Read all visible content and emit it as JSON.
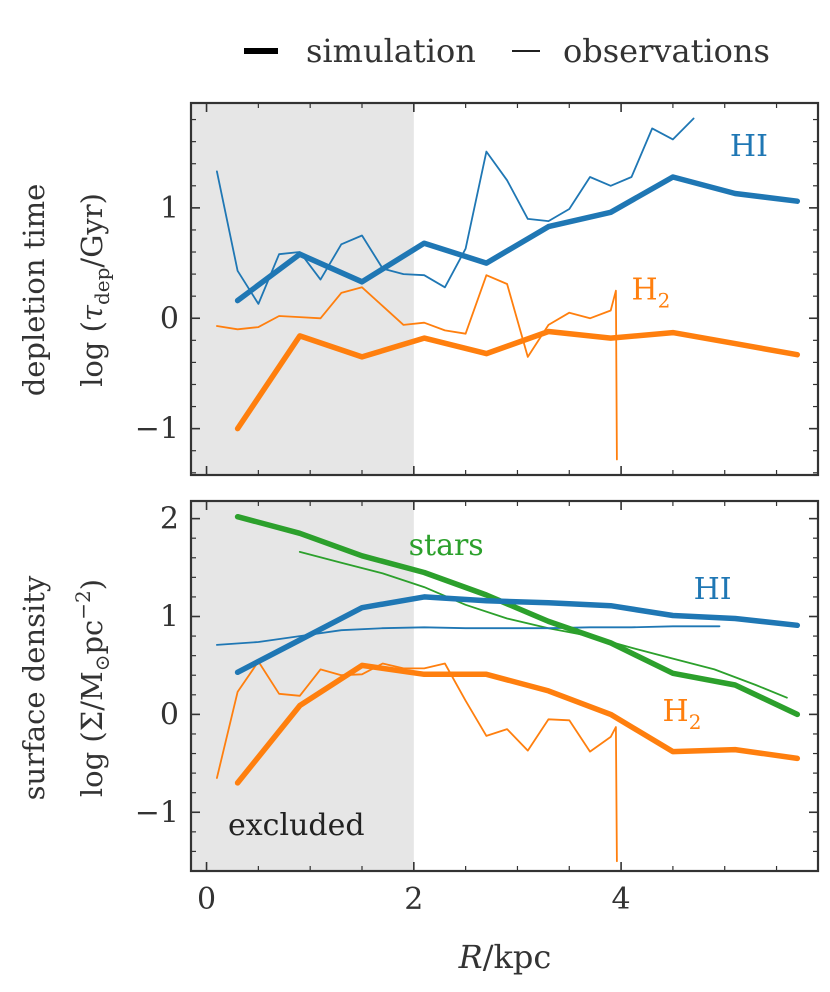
{
  "legend": {
    "simulation": "simulation",
    "observations": "observations"
  },
  "colors": {
    "HI": "#1f77b4",
    "H2": "#ff7f0e",
    "stars": "#2ca02c",
    "excluded": "#e6e6e6",
    "frame": "#333333"
  },
  "chart_data": [
    {
      "type": "line",
      "panel": "top",
      "ylabel_line1": "depletion time",
      "ylabel_line2": "log (τ_dep/Gyr)",
      "xlim": [
        -0.15,
        5.9
      ],
      "ylim": [
        -1.42,
        1.95
      ],
      "yticks": [
        -1,
        0,
        1
      ],
      "ytick_labels": [
        "−1",
        "0",
        "1"
      ],
      "excluded_region": [
        -0.15,
        2.0
      ],
      "series": [
        {
          "key": "HI_sim",
          "label": "HI",
          "color": "HI",
          "kind": "simulation",
          "x": [
            0.3,
            0.9,
            1.5,
            2.1,
            2.7,
            3.3,
            3.9,
            4.5,
            5.1,
            5.7
          ],
          "y": [
            0.16,
            0.58,
            0.33,
            0.68,
            0.5,
            0.83,
            0.96,
            1.28,
            1.13,
            1.06
          ]
        },
        {
          "key": "HI_obs",
          "color": "HI",
          "kind": "observations",
          "x": [
            0.1,
            0.3,
            0.5,
            0.7,
            0.9,
            1.1,
            1.3,
            1.5,
            1.7,
            1.9,
            2.1,
            2.3,
            2.5,
            2.7,
            2.9,
            3.1,
            3.3,
            3.5,
            3.7,
            3.9,
            4.1,
            4.3,
            4.5,
            4.7
          ],
          "y": [
            1.33,
            0.43,
            0.13,
            0.58,
            0.6,
            0.35,
            0.67,
            0.75,
            0.45,
            0.4,
            0.39,
            0.28,
            0.63,
            1.51,
            1.25,
            0.9,
            0.88,
            0.99,
            1.28,
            1.2,
            1.28,
            1.72,
            1.62,
            1.81
          ]
        },
        {
          "key": "H2_sim",
          "label": "H2",
          "color": "H2",
          "kind": "simulation",
          "x": [
            0.3,
            0.9,
            1.5,
            2.1,
            2.7,
            3.3,
            3.9,
            4.5,
            5.1,
            5.7
          ],
          "y": [
            -1.0,
            -0.16,
            -0.35,
            -0.18,
            -0.32,
            -0.12,
            -0.18,
            -0.13,
            -0.23,
            -0.33
          ]
        },
        {
          "key": "H2_obs",
          "color": "H2",
          "kind": "observations",
          "x": [
            0.1,
            0.3,
            0.5,
            0.7,
            0.9,
            1.1,
            1.3,
            1.5,
            1.7,
            1.9,
            2.1,
            2.3,
            2.5,
            2.7,
            2.9,
            3.1,
            3.3,
            3.5,
            3.7,
            3.9,
            3.95,
            3.96
          ],
          "y": [
            -0.07,
            -0.1,
            -0.08,
            0.02,
            0.01,
            0.0,
            0.23,
            0.28,
            0.11,
            -0.06,
            -0.04,
            -0.11,
            -0.14,
            0.39,
            0.31,
            -0.35,
            -0.06,
            0.05,
            0.0,
            0.07,
            0.25,
            -1.28
          ]
        }
      ],
      "labels": [
        {
          "text": "HI",
          "x": 5.05,
          "y": 1.47,
          "color": "HI"
        },
        {
          "text": "H",
          "sub": "2",
          "x": 4.1,
          "y": 0.17,
          "color": "H2"
        }
      ]
    },
    {
      "type": "line",
      "panel": "bottom",
      "ylabel_line1": "surface density",
      "ylabel_line2": "log (Σ/M⊙pc⁻²)",
      "xlabel": "R/kpc",
      "xlim": [
        -0.15,
        5.9
      ],
      "ylim": [
        -1.6,
        2.18
      ],
      "yticks": [
        -1,
        0,
        1,
        2
      ],
      "ytick_labels": [
        "−1",
        "0",
        "1",
        "2"
      ],
      "xticks": [
        0,
        2,
        4
      ],
      "xtick_labels": [
        "0",
        "2",
        "4"
      ],
      "excluded_region": [
        -0.15,
        2.0
      ],
      "excluded_label": "excluded",
      "series": [
        {
          "key": "stars_sim",
          "label": "stars",
          "color": "stars",
          "kind": "simulation",
          "x": [
            0.3,
            0.9,
            1.5,
            2.1,
            2.7,
            3.3,
            3.9,
            4.5,
            5.1,
            5.7
          ],
          "y": [
            2.02,
            1.85,
            1.62,
            1.45,
            1.22,
            0.95,
            0.73,
            0.42,
            0.3,
            0.0
          ]
        },
        {
          "key": "stars_obs",
          "color": "stars",
          "kind": "observations",
          "x": [
            0.9,
            1.3,
            1.7,
            2.1,
            2.5,
            2.9,
            3.3,
            3.7,
            4.1,
            4.5,
            4.9,
            5.3,
            5.6
          ],
          "y": [
            1.66,
            1.55,
            1.44,
            1.3,
            1.12,
            0.98,
            0.88,
            0.8,
            0.68,
            0.57,
            0.46,
            0.3,
            0.17
          ]
        },
        {
          "key": "HI_sim",
          "label": "HI",
          "color": "HI",
          "kind": "simulation",
          "x": [
            0.3,
            0.9,
            1.5,
            2.1,
            2.7,
            3.3,
            3.9,
            4.5,
            5.1,
            5.7
          ],
          "y": [
            0.43,
            0.76,
            1.09,
            1.2,
            1.16,
            1.14,
            1.11,
            1.01,
            0.98,
            0.91
          ]
        },
        {
          "key": "HI_obs",
          "color": "HI",
          "kind": "observations",
          "x": [
            0.1,
            0.5,
            0.9,
            1.3,
            1.7,
            2.1,
            2.5,
            2.9,
            3.3,
            3.7,
            4.1,
            4.5,
            4.95
          ],
          "y": [
            0.71,
            0.74,
            0.8,
            0.86,
            0.88,
            0.89,
            0.88,
            0.88,
            0.88,
            0.89,
            0.89,
            0.9,
            0.9
          ]
        },
        {
          "key": "H2_sim",
          "label": "H2",
          "color": "H2",
          "kind": "simulation",
          "x": [
            0.3,
            0.9,
            1.5,
            2.1,
            2.7,
            3.3,
            3.9,
            4.5,
            5.1,
            5.7
          ],
          "y": [
            -0.7,
            0.09,
            0.5,
            0.41,
            0.41,
            0.24,
            0.0,
            -0.38,
            -0.36,
            -0.45
          ]
        },
        {
          "key": "H2_obs",
          "color": "H2",
          "kind": "observations",
          "x": [
            0.1,
            0.3,
            0.5,
            0.7,
            0.9,
            1.1,
            1.3,
            1.5,
            1.7,
            1.9,
            2.1,
            2.3,
            2.5,
            2.7,
            2.9,
            3.1,
            3.3,
            3.5,
            3.7,
            3.9,
            3.95,
            3.96
          ],
          "y": [
            -0.65,
            0.23,
            0.54,
            0.21,
            0.19,
            0.46,
            0.4,
            0.41,
            0.52,
            0.47,
            0.47,
            0.52,
            0.14,
            -0.22,
            -0.15,
            -0.37,
            -0.05,
            -0.06,
            -0.38,
            -0.23,
            -0.13,
            -1.5
          ]
        }
      ],
      "labels": [
        {
          "text": "stars",
          "x": 1.95,
          "y": 1.63,
          "color": "stars"
        },
        {
          "text": "HI",
          "x": 4.7,
          "y": 1.18,
          "color": "HI"
        },
        {
          "text": "H",
          "sub": "2",
          "x": 4.4,
          "y": -0.07,
          "color": "H2"
        }
      ]
    }
  ]
}
